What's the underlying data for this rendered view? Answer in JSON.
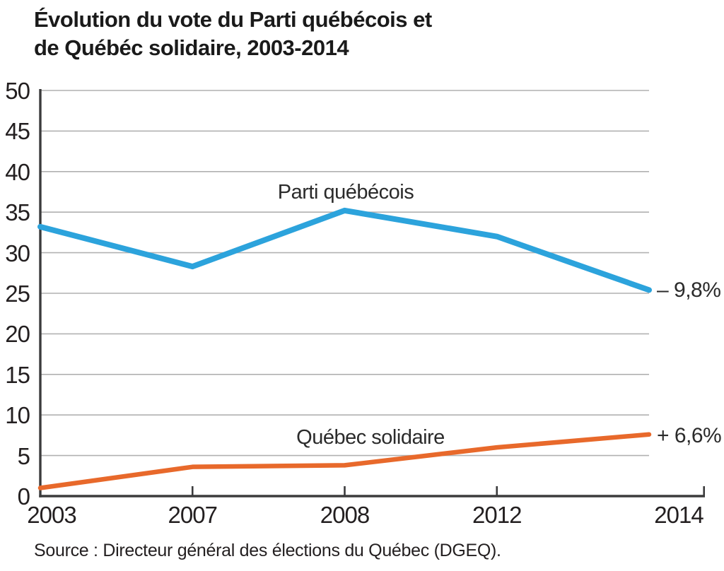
{
  "title": {
    "line1": "Évolution du vote du Parti québécois et",
    "line2": "de Québéc solidaire, 2003-2014"
  },
  "source": "Source : Directeur général des élections du Québec (DGEQ).",
  "colors": {
    "pq_line": "#2CA3DC",
    "qs_line": "#E8692B",
    "gridline": "#b1b1b1",
    "axis": "#3b3b3c",
    "text": "#231f20"
  },
  "chart_data": {
    "type": "line",
    "title": "Évolution du vote du Parti québécois et de Québéc solidaire, 2003-2014",
    "x": [
      "2003",
      "2007",
      "2008",
      "2012",
      "2014"
    ],
    "series": [
      {
        "name": "Parti québécois",
        "values": [
          33.2,
          28.3,
          35.2,
          32.0,
          25.4
        ],
        "color": "#2CA3DC",
        "end_label": "– 9,8%"
      },
      {
        "name": "Québec solidaire",
        "values": [
          1.0,
          3.6,
          3.8,
          6.0,
          7.6
        ],
        "color": "#E8692B",
        "end_label": "+ 6,6%"
      }
    ],
    "ylim": [
      0,
      50
    ],
    "y_ticks": [
      0,
      5,
      10,
      15,
      20,
      25,
      30,
      35,
      40,
      45,
      50
    ],
    "grid": true,
    "legend_position": "inline-labels",
    "xlabel": "",
    "ylabel": ""
  }
}
